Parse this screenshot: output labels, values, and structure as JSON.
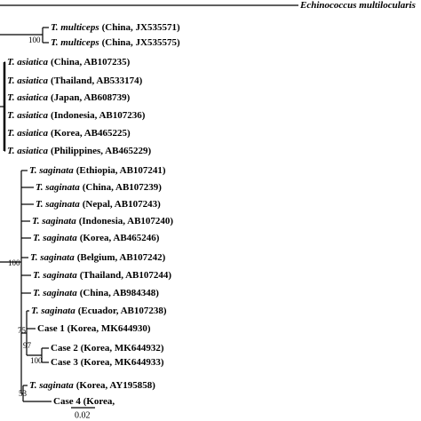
{
  "taxa": [
    {
      "species": "Echinococcus multilocularis"
    },
    {
      "species": "T. multiceps",
      "detail": "(China, JX535571)"
    },
    {
      "species": "T. multiceps",
      "detail": "(China, JX535575)"
    },
    {
      "species": "T. asiatica",
      "detail": "(China, AB107235)"
    },
    {
      "species": "T. asiatica",
      "detail": "(Thailand, AB533174)"
    },
    {
      "species": "T. asiatica",
      "detail": "(Japan, AB608739)"
    },
    {
      "species": "T. asiatica",
      "detail": "(Indonesia, AB107236)"
    },
    {
      "species": "T. asiatica",
      "detail": "(Korea, AB465225)"
    },
    {
      "species": "T. asiatica",
      "detail": "(Philippines, AB465229)"
    },
    {
      "species": "T. saginata",
      "detail": "(Ethiopia, AB107241)"
    },
    {
      "species": "T. saginata",
      "detail": "(China, AB107239)"
    },
    {
      "species": "T. saginata",
      "detail": "(Nepal, AB107243)"
    },
    {
      "species": "T. saginata",
      "detail": "(Indonesia, AB107240)"
    },
    {
      "species": "T. saginata",
      "detail": "(Korea, AB465246)"
    },
    {
      "species": "T. saginata",
      "detail": "(Belgium, AB107242)"
    },
    {
      "species": "T. saginata",
      "detail": "(Thailand, AB107244)"
    },
    {
      "species": "T. saginata",
      "detail": "(China, AB984348)"
    },
    {
      "species": "T. saginata",
      "detail": "(Ecuador, AB107238)"
    },
    {
      "detail": "Case 1 (Korea, MK644930)"
    },
    {
      "detail": "Case 2 (Korea, MK644932)"
    },
    {
      "detail": "Case 3 (Korea, MK644933)"
    },
    {
      "species": "T. saginata",
      "detail": "(Korea, AY195858)"
    },
    {
      "detail": "Case 4 (Korea,"
    }
  ],
  "bootstrap": [
    "100",
    "100",
    "75",
    "97",
    "100",
    "53"
  ],
  "scale_bar": "0.02"
}
